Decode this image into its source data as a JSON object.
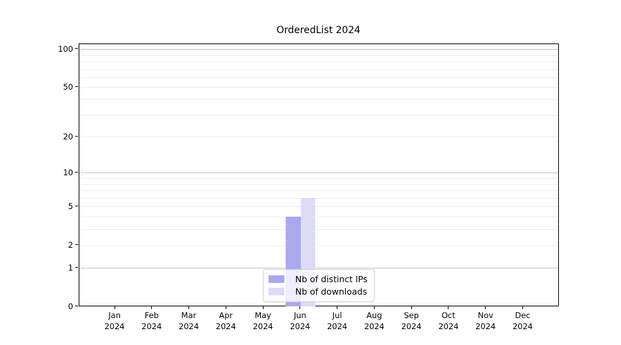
{
  "chart_data": {
    "type": "bar",
    "title": "OrderedList 2024",
    "x_tick_labels": [
      {
        "month": "Jan",
        "year": "2024"
      },
      {
        "month": "Feb",
        "year": "2024"
      },
      {
        "month": "Mar",
        "year": "2024"
      },
      {
        "month": "Apr",
        "year": "2024"
      },
      {
        "month": "May",
        "year": "2024"
      },
      {
        "month": "Jun",
        "year": "2024"
      },
      {
        "month": "Jul",
        "year": "2024"
      },
      {
        "month": "Aug",
        "year": "2024"
      },
      {
        "month": "Sep",
        "year": "2024"
      },
      {
        "month": "Oct",
        "year": "2024"
      },
      {
        "month": "Nov",
        "year": "2024"
      },
      {
        "month": "Dec",
        "year": "2024"
      }
    ],
    "series": [
      {
        "name": "Nb of distinct IPs",
        "color": "#a9a9ef",
        "values": [
          0,
          0,
          0,
          0,
          0,
          4,
          0,
          0,
          0,
          0,
          0,
          0
        ]
      },
      {
        "name": "Nb of downloads",
        "color": "#dcdcf7",
        "values": [
          0,
          0,
          0,
          0,
          0,
          6,
          0,
          0,
          0,
          0,
          0,
          0
        ]
      }
    ],
    "y_scale": "log1p",
    "ylim": [
      0,
      110.8
    ],
    "y_ticks": [
      0,
      1,
      2,
      5,
      10,
      20,
      50,
      100
    ],
    "grid": {
      "major_values": [
        1,
        10,
        100
      ],
      "minor_values": [
        2,
        3,
        4,
        5,
        6,
        7,
        8,
        9,
        20,
        30,
        40,
        50,
        60,
        70,
        80,
        90
      ],
      "major_color": "#c5c5c5",
      "minor_color": "#ececec"
    },
    "legend_position": "lower center"
  }
}
